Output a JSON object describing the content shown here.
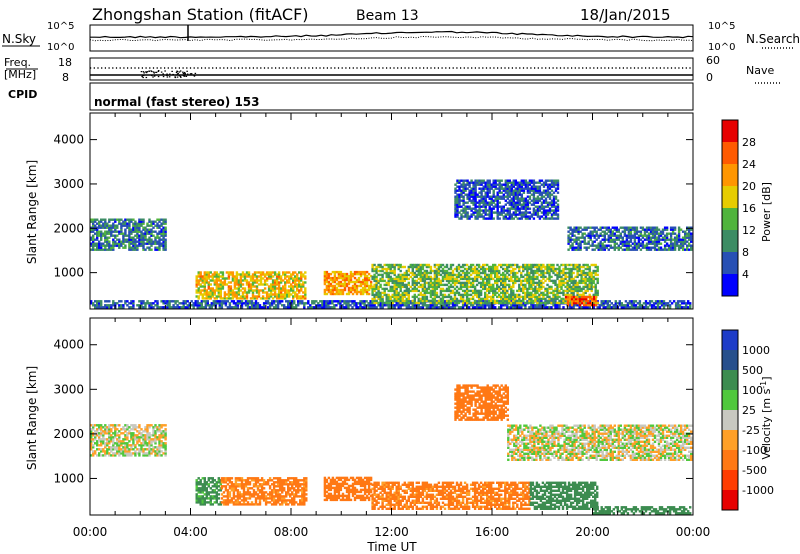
{
  "header": {
    "station": "Zhongshan Station (fitACF)",
    "beam": "Beam 13",
    "date": "18/Jan/2015"
  },
  "panels": {
    "sky": {
      "left_label": "N.Sky",
      "right_label": "N.Search",
      "left_ticks": [
        "10^5",
        "10^0"
      ],
      "right_ticks": [
        "10^5",
        "10^0"
      ]
    },
    "freq": {
      "left_label_line1": "Freq.",
      "left_label_line2": "[MHz]",
      "right_label": "Nave",
      "left_ticks": [
        "18",
        "8"
      ],
      "right_ticks": [
        "60",
        "0"
      ]
    },
    "cpid": {
      "label": "CPID",
      "mode": "normal (fast stereo) 153"
    }
  },
  "chart_data": [
    {
      "type": "heatmap",
      "name": "power",
      "xlabel": "Time UT",
      "ylabel": "Slant Range [km]",
      "x_range": [
        "00:00",
        "00:00"
      ],
      "ylim": [
        180,
        4600
      ],
      "y_ticks": [
        "1000",
        "2000",
        "3000",
        "4000"
      ],
      "x_ticks": [
        "00:00",
        "04:00",
        "08:00",
        "12:00",
        "16:00",
        "20:00",
        "00:00"
      ],
      "colorbar": {
        "label": "Power [dB]",
        "ticks": [
          "4",
          "8",
          "12",
          "16",
          "20",
          "24",
          "28"
        ],
        "colors": [
          "#0000ff",
          "#2850b4",
          "#3c8c64",
          "#50b43c",
          "#e6cc00",
          "#ff9600",
          "#ff5a00",
          "#e60000"
        ],
        "range": [
          0,
          30
        ]
      },
      "echo_regions": [
        {
          "t_start": 0.0,
          "t_end": 3.0,
          "r_start": 1500,
          "r_end": 2200,
          "level": 8
        },
        {
          "t_start": 0.0,
          "t_end": 23.9,
          "r_start": 200,
          "r_end": 350,
          "level": 6
        },
        {
          "t_start": 4.2,
          "t_end": 8.6,
          "r_start": 400,
          "r_end": 1000,
          "level": 18
        },
        {
          "t_start": 9.3,
          "t_end": 11.2,
          "r_start": 500,
          "r_end": 1000,
          "level": 20
        },
        {
          "t_start": 11.2,
          "t_end": 20.2,
          "r_start": 300,
          "r_end": 1200,
          "level": 13
        },
        {
          "t_start": 18.9,
          "t_end": 20.1,
          "r_start": 250,
          "r_end": 450,
          "level": 24
        },
        {
          "t_start": 14.5,
          "t_end": 18.6,
          "r_start": 2200,
          "r_end": 3100,
          "level": 6
        },
        {
          "t_start": 19.0,
          "t_end": 23.9,
          "r_start": 1500,
          "r_end": 2000,
          "level": 7
        }
      ]
    },
    {
      "type": "heatmap",
      "name": "velocity",
      "xlabel": "Time UT",
      "ylabel": "Slant Range [km]",
      "x_range": [
        "00:00",
        "00:00"
      ],
      "ylim": [
        180,
        4600
      ],
      "y_ticks": [
        "1000",
        "2000",
        "3000",
        "4000"
      ],
      "x_ticks": [
        "00:00",
        "04:00",
        "08:00",
        "12:00",
        "16:00",
        "20:00",
        "00:00"
      ],
      "colorbar": {
        "label": "Velocity [m s^-1]",
        "ticks": [
          "1000",
          "500",
          "100",
          "25",
          "-25",
          "-100",
          "-500",
          "-1000"
        ],
        "colors": [
          "#1e3cc8",
          "#28508c",
          "#3c8c50",
          "#50c83c",
          "#c8c8c0",
          "#ffa028",
          "#ff7814",
          "#ff3c00",
          "#e60000"
        ]
      },
      "echo_regions": [
        {
          "t_start": 0.0,
          "t_end": 3.0,
          "r_start": 1500,
          "r_end": 2200,
          "value": 0
        },
        {
          "t_start": 4.2,
          "t_end": 5.2,
          "r_start": 400,
          "r_end": 1000,
          "value": 150
        },
        {
          "t_start": 5.2,
          "t_end": 8.6,
          "r_start": 400,
          "r_end": 1000,
          "value": -150
        },
        {
          "t_start": 9.3,
          "t_end": 11.2,
          "r_start": 500,
          "r_end": 1000,
          "value": -200
        },
        {
          "t_start": 11.2,
          "t_end": 17.5,
          "r_start": 300,
          "r_end": 900,
          "value": -150
        },
        {
          "t_start": 17.5,
          "t_end": 20.2,
          "r_start": 300,
          "r_end": 900,
          "value": 200
        },
        {
          "t_start": 14.5,
          "t_end": 16.6,
          "r_start": 2300,
          "r_end": 3100,
          "value": -200
        },
        {
          "t_start": 16.6,
          "t_end": 23.9,
          "r_start": 1400,
          "r_end": 2200,
          "value": 0
        },
        {
          "t_start": 20.0,
          "t_end": 23.9,
          "r_start": 200,
          "r_end": 350,
          "value": 300
        }
      ]
    }
  ]
}
